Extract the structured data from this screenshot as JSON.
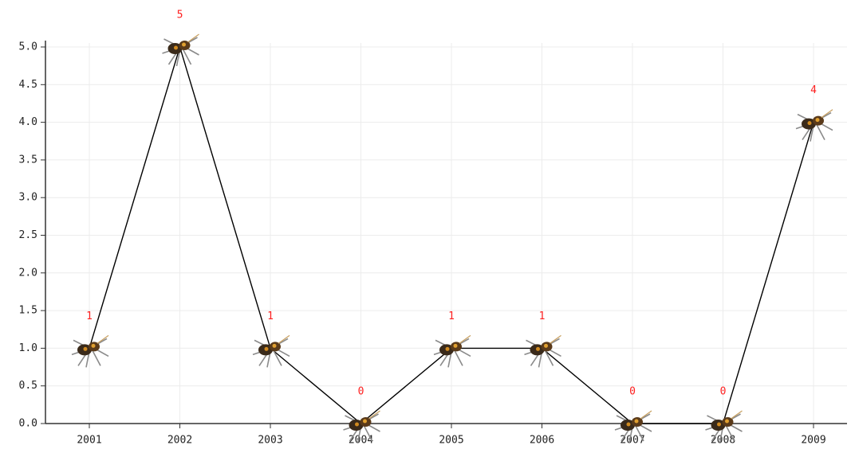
{
  "chart_data": {
    "type": "line",
    "categories": [
      "2001",
      "2002",
      "2003",
      "2004",
      "2005",
      "2006",
      "2007",
      "2008",
      "2009"
    ],
    "values": [
      1,
      5,
      1,
      0,
      1,
      1,
      0,
      0,
      4
    ],
    "color": "#000000",
    "label_color": "#ff2020",
    "ylim": [
      0,
      5
    ],
    "yticks": [
      {
        "value": 0,
        "label": "0.0"
      },
      {
        "value": 0.5,
        "label": "0.5"
      },
      {
        "value": 1,
        "label": "1.0"
      },
      {
        "value": 1.5,
        "label": "1.5"
      },
      {
        "value": 2,
        "label": "2.0"
      },
      {
        "value": 2.5,
        "label": "2.5"
      },
      {
        "value": 3,
        "label": "3.0"
      },
      {
        "value": 3.5,
        "label": "3.5"
      },
      {
        "value": 4,
        "label": "4.0"
      },
      {
        "value": 4.5,
        "label": "4.5"
      },
      {
        "value": 5,
        "label": "5.0"
      }
    ],
    "grid": true
  }
}
